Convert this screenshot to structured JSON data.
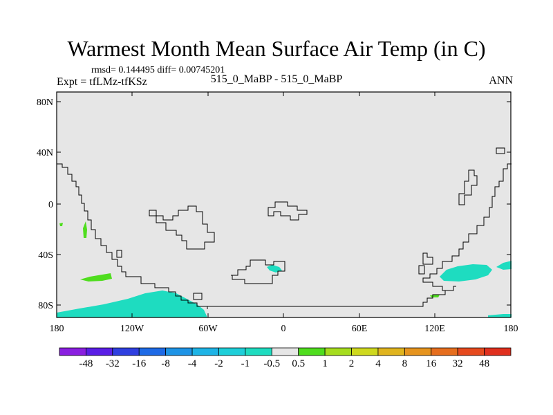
{
  "title": "Warmest Month Mean Surface Air Temp (in C)",
  "stats": "rmsd= 0.144495 diff= 0.00745201",
  "expt": "Expt = tfLMz-tfKSz",
  "center_label": "515_0_MaBP - 515_0_MaBP",
  "season": "ANN",
  "map": {
    "projection": "cylindrical-equidistant",
    "lon_range": [
      -180,
      180
    ],
    "lat_range": [
      -90,
      90
    ],
    "background_color": "#e6e6e6",
    "y_ticks": [
      "80N",
      "40N",
      "0",
      "40S",
      "80S"
    ],
    "x_ticks": [
      "180",
      "120W",
      "60W",
      "0",
      "60E",
      "120E",
      "180"
    ]
  },
  "colorbar": {
    "labels": [
      "-48",
      "-32",
      "-16",
      "-8",
      "-4",
      "-2",
      "-1",
      "-0.5",
      "0.5",
      "1",
      "2",
      "4",
      "8",
      "16",
      "32",
      "48"
    ],
    "colors": [
      "#8a1fe0",
      "#5a1ee6",
      "#2f3fe0",
      "#1e6ae6",
      "#1e94e6",
      "#1eb4e6",
      "#1ecfd9",
      "#1edcc0",
      "#e6e6e6",
      "#4fdd1e",
      "#a6dd1e",
      "#cfd91e",
      "#e0b41e",
      "#e6941e",
      "#e66e1e",
      "#e64a1e",
      "#e0301e"
    ]
  }
}
